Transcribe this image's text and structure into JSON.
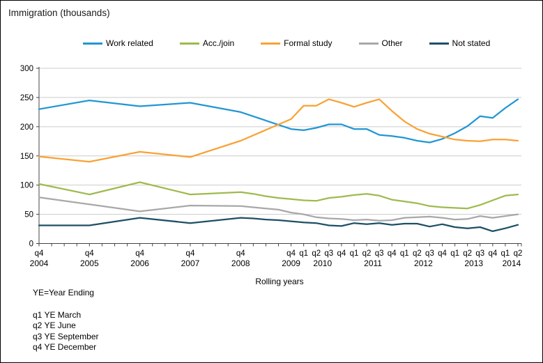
{
  "title": "Immigration (thousands)",
  "footnotes": [
    "YE=Year Ending",
    "q1 YE March",
    "q2 YE June",
    "q3 YE September",
    "q4 YE December"
  ],
  "colors": {
    "gridline": "#cccccc",
    "axis": "#444444",
    "text": "#000000"
  },
  "chart_data": {
    "type": "line",
    "title": "Immigration (thousands)",
    "xlabel": "Rolling years",
    "ylabel": "",
    "ylim": [
      0,
      300
    ],
    "y_ticks": [
      300,
      250,
      200,
      150,
      100,
      50,
      0
    ],
    "grid": true,
    "legend_position": "top",
    "x_unit": "quarter index, 0 = q4 2004, 38 = q2 2014",
    "x_ticks": [
      {
        "i": 0,
        "q": "q4"
      },
      {
        "i": 1,
        "q": ""
      },
      {
        "i": 2,
        "q": ""
      },
      {
        "i": 3,
        "q": ""
      },
      {
        "i": 4,
        "q": "q4"
      },
      {
        "i": 5,
        "q": ""
      },
      {
        "i": 6,
        "q": ""
      },
      {
        "i": 7,
        "q": ""
      },
      {
        "i": 8,
        "q": "q4"
      },
      {
        "i": 9,
        "q": ""
      },
      {
        "i": 10,
        "q": ""
      },
      {
        "i": 11,
        "q": ""
      },
      {
        "i": 12,
        "q": "q4"
      },
      {
        "i": 13,
        "q": ""
      },
      {
        "i": 14,
        "q": ""
      },
      {
        "i": 15,
        "q": ""
      },
      {
        "i": 16,
        "q": "q4"
      },
      {
        "i": 17,
        "q": ""
      },
      {
        "i": 18,
        "q": ""
      },
      {
        "i": 19,
        "q": ""
      },
      {
        "i": 20,
        "q": "q4"
      },
      {
        "i": 21,
        "q": "q1"
      },
      {
        "i": 22,
        "q": "q2"
      },
      {
        "i": 23,
        "q": "q3"
      },
      {
        "i": 24,
        "q": "q4"
      },
      {
        "i": 25,
        "q": "q1"
      },
      {
        "i": 26,
        "q": "q2"
      },
      {
        "i": 27,
        "q": "q3"
      },
      {
        "i": 28,
        "q": "q4"
      },
      {
        "i": 29,
        "q": "q1"
      },
      {
        "i": 30,
        "q": "q2"
      },
      {
        "i": 31,
        "q": "q3"
      },
      {
        "i": 32,
        "q": "q4"
      },
      {
        "i": 33,
        "q": "q1"
      },
      {
        "i": 34,
        "q": "q2"
      },
      {
        "i": 35,
        "q": "q3"
      },
      {
        "i": 36,
        "q": "q4"
      },
      {
        "i": 37,
        "q": "q1"
      },
      {
        "i": 38,
        "q": "q2"
      }
    ],
    "year_labels": [
      {
        "text": "2004",
        "center": 0
      },
      {
        "text": "2005",
        "center": 4
      },
      {
        "text": "2006",
        "center": 8
      },
      {
        "text": "2007",
        "center": 12
      },
      {
        "text": "2008",
        "center": 16
      },
      {
        "text": "2009",
        "center": 20
      },
      {
        "text": "2010",
        "center": 22.5
      },
      {
        "text": "2011",
        "center": 26.5
      },
      {
        "text": "2012",
        "center": 30.5
      },
      {
        "text": "2013",
        "center": 34.5
      },
      {
        "text": "2014",
        "center": 37.5
      }
    ],
    "series": [
      {
        "name": "Work related",
        "color": "#2196d3",
        "points": [
          [
            0,
            230
          ],
          [
            4,
            245
          ],
          [
            8,
            235
          ],
          [
            12,
            241
          ],
          [
            16,
            225
          ],
          [
            20,
            196
          ],
          [
            21,
            194
          ],
          [
            22,
            198
          ],
          [
            23,
            204
          ],
          [
            24,
            204
          ],
          [
            25,
            196
          ],
          [
            26,
            196
          ],
          [
            27,
            186
          ],
          [
            28,
            184
          ],
          [
            29,
            181
          ],
          [
            30,
            176
          ],
          [
            31,
            173
          ],
          [
            32,
            179
          ],
          [
            33,
            189
          ],
          [
            34,
            201
          ],
          [
            35,
            218
          ],
          [
            36,
            215
          ],
          [
            37,
            232
          ],
          [
            38,
            247
          ]
        ]
      },
      {
        "name": "Acc./join",
        "color": "#9dbb4d",
        "points": [
          [
            0,
            102
          ],
          [
            4,
            84
          ],
          [
            8,
            105
          ],
          [
            12,
            84
          ],
          [
            16,
            88
          ],
          [
            17,
            85
          ],
          [
            18,
            81
          ],
          [
            19,
            78
          ],
          [
            20,
            76
          ],
          [
            21,
            74
          ],
          [
            22,
            73
          ],
          [
            23,
            78
          ],
          [
            24,
            80
          ],
          [
            25,
            83
          ],
          [
            26,
            85
          ],
          [
            27,
            82
          ],
          [
            28,
            75
          ],
          [
            29,
            72
          ],
          [
            30,
            69
          ],
          [
            31,
            64
          ],
          [
            32,
            62
          ],
          [
            33,
            61
          ],
          [
            34,
            60
          ],
          [
            35,
            66
          ],
          [
            36,
            74
          ],
          [
            37,
            82
          ],
          [
            38,
            84
          ]
        ]
      },
      {
        "name": "Formal study",
        "color": "#f9a234",
        "points": [
          [
            0,
            149
          ],
          [
            4,
            140
          ],
          [
            8,
            157
          ],
          [
            12,
            148
          ],
          [
            16,
            176
          ],
          [
            20,
            213
          ],
          [
            21,
            236
          ],
          [
            22,
            236
          ],
          [
            23,
            247
          ],
          [
            24,
            241
          ],
          [
            25,
            234
          ],
          [
            26,
            241
          ],
          [
            27,
            247
          ],
          [
            28,
            227
          ],
          [
            29,
            209
          ],
          [
            30,
            196
          ],
          [
            31,
            188
          ],
          [
            32,
            183
          ],
          [
            33,
            178
          ],
          [
            34,
            176
          ],
          [
            35,
            175
          ],
          [
            36,
            178
          ],
          [
            37,
            178
          ],
          [
            38,
            176
          ]
        ]
      },
      {
        "name": "Other",
        "color": "#a8a8a8",
        "points": [
          [
            0,
            79
          ],
          [
            4,
            67
          ],
          [
            8,
            55
          ],
          [
            12,
            65
          ],
          [
            16,
            64
          ],
          [
            17,
            62
          ],
          [
            18,
            60
          ],
          [
            19,
            58
          ],
          [
            20,
            53
          ],
          [
            21,
            50
          ],
          [
            22,
            45
          ],
          [
            23,
            43
          ],
          [
            24,
            42
          ],
          [
            25,
            40
          ],
          [
            26,
            41
          ],
          [
            27,
            39
          ],
          [
            28,
            40
          ],
          [
            29,
            44
          ],
          [
            30,
            45
          ],
          [
            31,
            46
          ],
          [
            32,
            44
          ],
          [
            33,
            41
          ],
          [
            34,
            42
          ],
          [
            35,
            47
          ],
          [
            36,
            44
          ],
          [
            37,
            47
          ],
          [
            38,
            50
          ]
        ]
      },
      {
        "name": "Not stated",
        "color": "#1d4f66",
        "points": [
          [
            0,
            31
          ],
          [
            4,
            31
          ],
          [
            8,
            44
          ],
          [
            12,
            35
          ],
          [
            16,
            44
          ],
          [
            17,
            43
          ],
          [
            18,
            41
          ],
          [
            19,
            40
          ],
          [
            20,
            38
          ],
          [
            21,
            36
          ],
          [
            22,
            35
          ],
          [
            23,
            31
          ],
          [
            24,
            30
          ],
          [
            25,
            35
          ],
          [
            26,
            33
          ],
          [
            27,
            35
          ],
          [
            28,
            32
          ],
          [
            29,
            34
          ],
          [
            30,
            34
          ],
          [
            31,
            29
          ],
          [
            32,
            33
          ],
          [
            33,
            28
          ],
          [
            34,
            26
          ],
          [
            35,
            28
          ],
          [
            36,
            21
          ],
          [
            37,
            26
          ],
          [
            38,
            32
          ]
        ]
      }
    ]
  }
}
